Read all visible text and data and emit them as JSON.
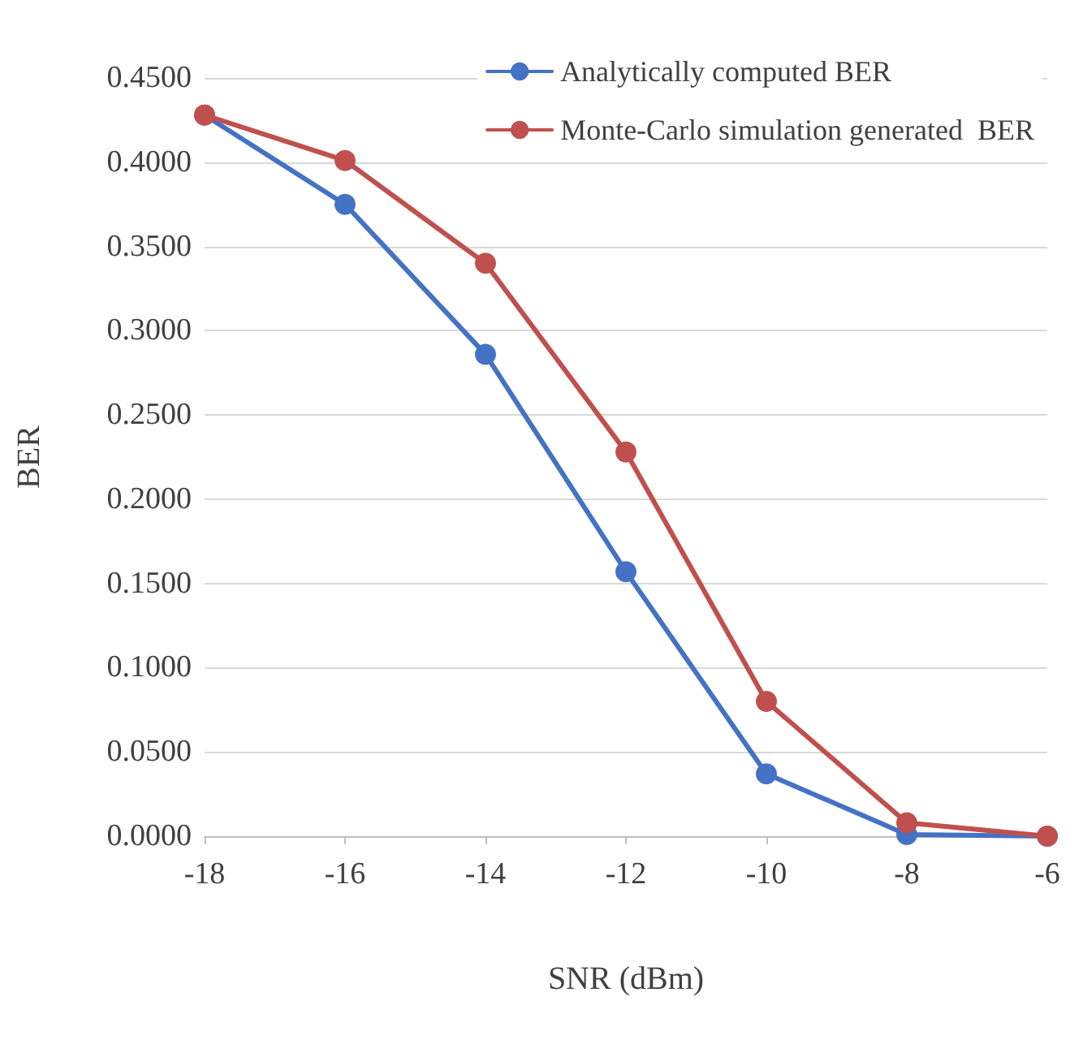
{
  "chart_data": {
    "type": "line",
    "xlabel": "SNR (dBm)",
    "ylabel": "BER",
    "x": [
      -18,
      -16,
      -14,
      -12,
      -10,
      -8,
      -6
    ],
    "series": [
      {
        "name": "Analytically computed BER",
        "color": "#4472c4",
        "values": [
          0.428,
          0.375,
          0.286,
          0.157,
          0.037,
          0.001,
          0
        ]
      },
      {
        "name": "Monte-Carlo simulation generated  BER",
        "color": "#c0504d",
        "values": [
          0.428,
          0.401,
          0.34,
          0.228,
          0.08,
          0.008,
          0
        ]
      }
    ],
    "xlim": [
      -18,
      -6
    ],
    "xticks": [
      -18,
      -16,
      -14,
      -12,
      -10,
      -8,
      -6
    ],
    "ylim": [
      0,
      0.45
    ],
    "yticks": [
      {
        "value": 0,
        "label": "0.0000"
      },
      {
        "value": 0.05,
        "label": "0.0500"
      },
      {
        "value": 0.1,
        "label": "0.1000"
      },
      {
        "value": 0.15,
        "label": "0.1500"
      },
      {
        "value": 0.2,
        "label": "0.2000"
      },
      {
        "value": 0.25,
        "label": "0.2500"
      },
      {
        "value": 0.3,
        "label": "0.3000"
      },
      {
        "value": 0.35,
        "label": "0.3500"
      },
      {
        "value": 0.4,
        "label": "0.4000"
      },
      {
        "value": 0.45,
        "label": "0.4500"
      }
    ],
    "grid": "y",
    "legend": "top right",
    "marker": "circle",
    "line_style": "solid"
  }
}
